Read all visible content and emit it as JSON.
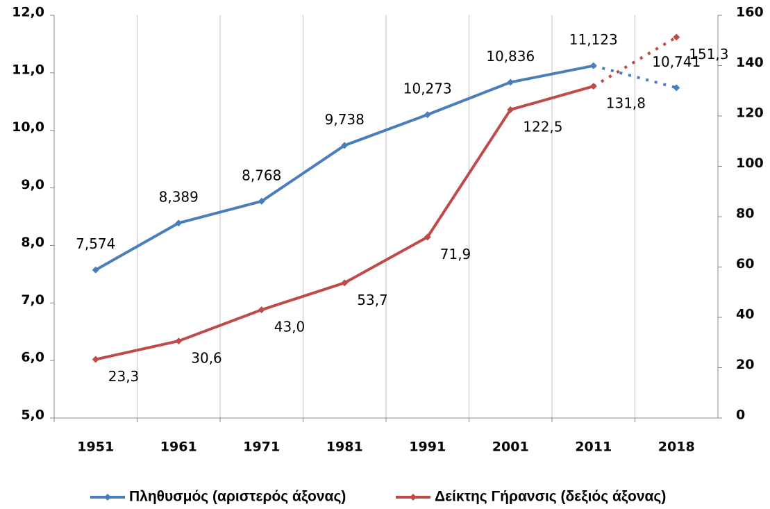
{
  "chart_data": {
    "type": "line",
    "categories": [
      "1951",
      "1961",
      "1971",
      "1981",
      "1991",
      "2001",
      "2011",
      "2018"
    ],
    "dashed_after": "2011",
    "series": [
      {
        "name": "Πληθυσμός (αριστερός άξονας)",
        "color": "#4a7ebb",
        "axis": "y",
        "values": [
          7.574,
          8.389,
          8.768,
          9.738,
          10.273,
          10.836,
          11.123,
          10.741
        ],
        "value_labels": [
          "7,574",
          "8,389",
          "8,768",
          "9,738",
          "10,273",
          "10,836",
          "11,123",
          "10,741"
        ]
      },
      {
        "name": "Δείκτης Γήρανσις (δεξιός άξονας)",
        "color": "#be4b48",
        "axis": "y2",
        "values": [
          23.3,
          30.6,
          43.0,
          53.7,
          71.9,
          122.5,
          131.8,
          151.3
        ],
        "value_labels": [
          "23,3",
          "30,6",
          "43,0",
          "53,7",
          "71,9",
          "122,5",
          "131,8",
          "151,3"
        ]
      }
    ],
    "ylim": [
      5,
      12
    ],
    "yticks": [
      {
        "value": 5,
        "label": "5,0"
      },
      {
        "value": 6,
        "label": "6,0"
      },
      {
        "value": 7,
        "label": "7,0"
      },
      {
        "value": 8,
        "label": "8,0"
      },
      {
        "value": 9,
        "label": "9,0"
      },
      {
        "value": 10,
        "label": "10,0"
      },
      {
        "value": 11,
        "label": "11,0"
      },
      {
        "value": 12,
        "label": "12,0"
      }
    ],
    "y2lim": [
      0,
      160
    ],
    "y2ticks": [
      0,
      20,
      40,
      60,
      80,
      100,
      120,
      140,
      160
    ],
    "legend": "bottom"
  }
}
